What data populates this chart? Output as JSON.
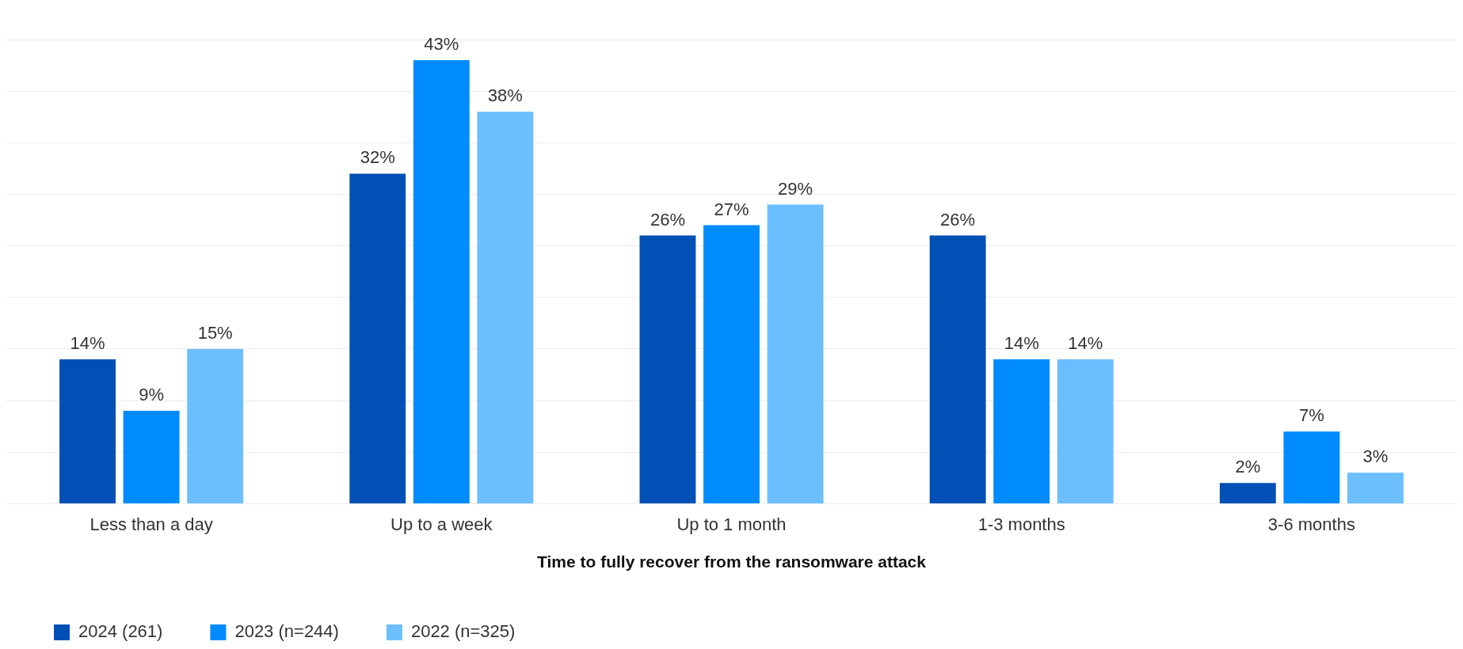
{
  "chart_data": {
    "type": "bar",
    "xlabel": "Time to fully recover from the ransomware attack",
    "categories": [
      "Less than a day",
      "Up to a week",
      "Up to 1 month",
      "1-3 months",
      "3-6 months"
    ],
    "series": [
      {
        "name": "2024 (261)",
        "color": "#0050b5",
        "values": [
          14,
          32,
          26,
          26,
          2
        ],
        "value_labels": [
          "14%",
          "32%",
          "26%",
          "26%",
          "2%"
        ]
      },
      {
        "name": "2023 (n=244)",
        "color": "#008bff",
        "values": [
          9,
          43,
          27,
          14,
          7
        ],
        "value_labels": [
          "9%",
          "43%",
          "27%",
          "14%",
          "7%"
        ]
      },
      {
        "name": "2022 (n=325)",
        "color": "#6bbfff",
        "values": [
          15,
          38,
          29,
          14,
          3
        ],
        "value_labels": [
          "15%",
          "38%",
          "29%",
          "14%",
          "3%"
        ]
      }
    ],
    "ylim": [
      0,
      45
    ],
    "yticks": [
      0,
      {
        "value": 5,
        "label": null
      },
      {
        "value": 10,
        "label": null
      },
      {
        "value": 15,
        "label": null
      },
      {
        "value": 20,
        "label": null
      },
      {
        "value": 25,
        "label": null
      },
      {
        "value": 30,
        "label": null
      },
      {
        "value": 35,
        "label": null
      },
      {
        "value": 40,
        "label": null
      },
      {
        "value": 45,
        "label": null
      }
    ],
    "tick_labels": "x",
    "grid": "y",
    "legend": "bottom left"
  }
}
